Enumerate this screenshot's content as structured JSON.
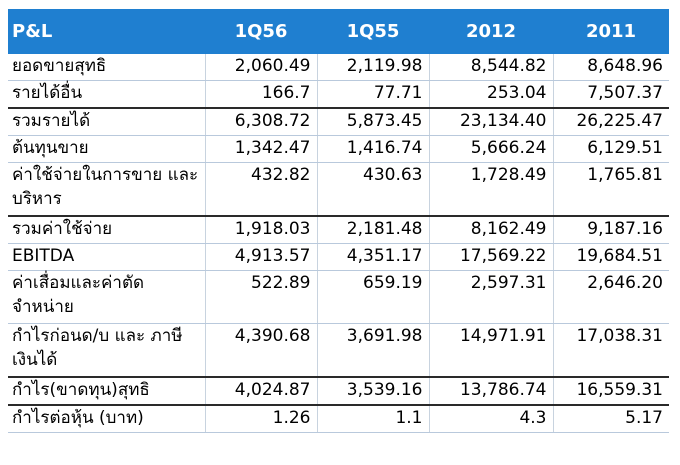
{
  "table": {
    "headers": [
      "P&L",
      "1Q56",
      "1Q55",
      "2012",
      "2011"
    ],
    "rows": [
      {
        "label": "ยอดขายสุทธิ",
        "values": [
          "2,060.49",
          "2,119.98",
          "8,544.82",
          "8,648.96"
        ]
      },
      {
        "label": "รายได้อื่น",
        "values": [
          "166.7",
          "77.71",
          "253.04",
          "7,507.37"
        ]
      },
      {
        "label": "รวมรายได้",
        "values": [
          "6,308.72",
          "5,873.45",
          "23,134.40",
          "26,225.47"
        ]
      },
      {
        "label": "ต้นทุนขาย",
        "values": [
          "1,342.47",
          "1,416.74",
          "5,666.24",
          "6,129.51"
        ]
      },
      {
        "label": "ค่าใช้จ่ายในการขาย และบริหาร",
        "values": [
          "432.82",
          "430.63",
          "1,728.49",
          "1,765.81"
        ]
      },
      {
        "label": "รวมค่าใช้จ่าย",
        "values": [
          "1,918.03",
          "2,181.48",
          "8,162.49",
          "9,187.16"
        ]
      },
      {
        "label": "EBITDA",
        "values": [
          "4,913.57",
          "4,351.17",
          "17,569.22",
          "19,684.51"
        ]
      },
      {
        "label": "ค่าเสื่อมและค่าตัด จำหน่าย",
        "values": [
          "522.89",
          "659.19",
          "2,597.31",
          "2,646.20"
        ]
      },
      {
        "label": "กำไรก่อนด/บ และ ภาษีเงินได้",
        "values": [
          "4,390.68",
          "3,691.98",
          "14,971.91",
          "17,038.31"
        ]
      },
      {
        "label": "กำไร(ขาดทุน)สุทธิ",
        "values": [
          "4,024.87",
          "3,539.16",
          "13,786.74",
          "16,559.31"
        ]
      },
      {
        "label": "กำไรต่อหุ้น (บาท)",
        "values": [
          "1.26",
          "1.1",
          "4.3",
          "5.17"
        ]
      }
    ]
  }
}
